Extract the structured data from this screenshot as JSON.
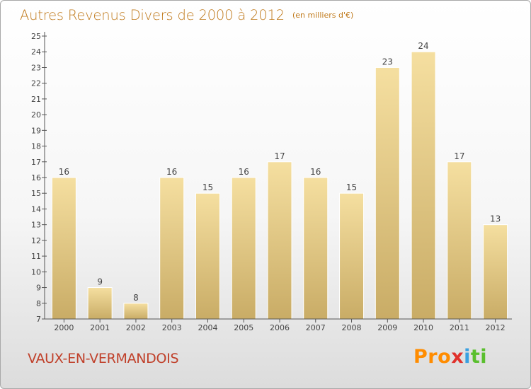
{
  "header": {
    "title": "Autres Revenus Divers de 2000 à 2012",
    "unit": "(en milliers d'€)"
  },
  "footer": {
    "commune": "VAUX-EN-VERMANDOIS",
    "brand_letters": [
      "P",
      "r",
      "o",
      "x",
      "i",
      "t",
      "i"
    ]
  },
  "chart_data": {
    "type": "bar",
    "categories": [
      "2000",
      "2001",
      "2002",
      "2003",
      "2004",
      "2005",
      "2006",
      "2007",
      "2008",
      "2009",
      "2010",
      "2011",
      "2012"
    ],
    "values": [
      16,
      9,
      8,
      16,
      15,
      16,
      17,
      16,
      15,
      23,
      24,
      17,
      13
    ],
    "ylim": [
      7,
      25
    ],
    "yticks": [
      7,
      8,
      9,
      10,
      11,
      12,
      13,
      14,
      15,
      16,
      17,
      18,
      19,
      20,
      21,
      22,
      23,
      24,
      25
    ],
    "data_labels": true,
    "grid": false,
    "colors": {
      "bar_light": "#f5dfa0",
      "bar_dark": "#c9ac66",
      "title": "#c07a1c",
      "commune": "#c0402a",
      "axis": "#555555"
    }
  }
}
